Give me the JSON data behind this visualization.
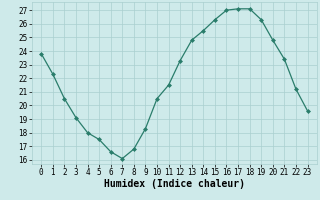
{
  "x": [
    0,
    1,
    2,
    3,
    4,
    5,
    6,
    7,
    8,
    9,
    10,
    11,
    12,
    13,
    14,
    15,
    16,
    17,
    18,
    19,
    20,
    21,
    22,
    23
  ],
  "y": [
    23.8,
    22.3,
    20.5,
    19.1,
    18.0,
    17.5,
    16.6,
    16.1,
    16.8,
    18.3,
    20.5,
    21.5,
    23.3,
    24.8,
    25.5,
    26.3,
    27.0,
    27.1,
    27.1,
    26.3,
    24.8,
    23.4,
    21.2,
    19.6
  ],
  "xlabel": "Humidex (Indice chaleur)",
  "ylim": [
    15.7,
    27.6
  ],
  "yticks": [
    16,
    17,
    18,
    19,
    20,
    21,
    22,
    23,
    24,
    25,
    26,
    27
  ],
  "xticks": [
    0,
    1,
    2,
    3,
    4,
    5,
    6,
    7,
    8,
    9,
    10,
    11,
    12,
    13,
    14,
    15,
    16,
    17,
    18,
    19,
    20,
    21,
    22,
    23
  ],
  "line_color": "#2a7d6b",
  "marker_color": "#2a7d6b",
  "bg_color": "#ceeaea",
  "grid_color": "#aacfcf",
  "xlabel_fontsize": 7,
  "tick_fontsize": 5.5
}
